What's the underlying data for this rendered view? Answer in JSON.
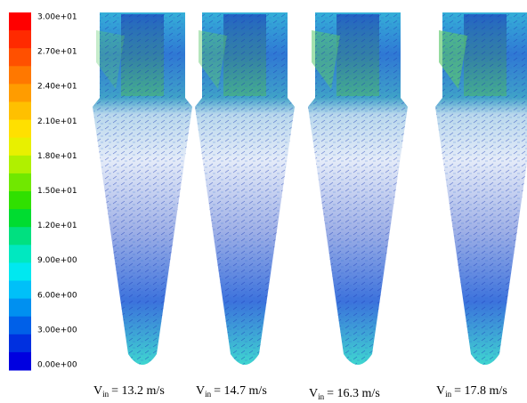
{
  "colorbar": {
    "labels": [
      "3.00e+01",
      "2.70e+01",
      "2.40e+01",
      "2.10e+01",
      "1.80e+01",
      "1.50e+01",
      "1.20e+01",
      "9.00e+00",
      "6.00e+00",
      "3.00e+00",
      "0.00e+00"
    ]
  },
  "panels": [
    {
      "symbol": "V",
      "subscript": "in",
      "text": "= 13.2 m/s"
    },
    {
      "symbol": "V",
      "subscript": "in",
      "text": "= 14.7 m/s"
    },
    {
      "symbol": "V",
      "subscript": "in",
      "text": "= 16.3 m/s"
    },
    {
      "symbol": "V",
      "subscript": "in",
      "text": "= 17.8 m/s"
    }
  ]
}
